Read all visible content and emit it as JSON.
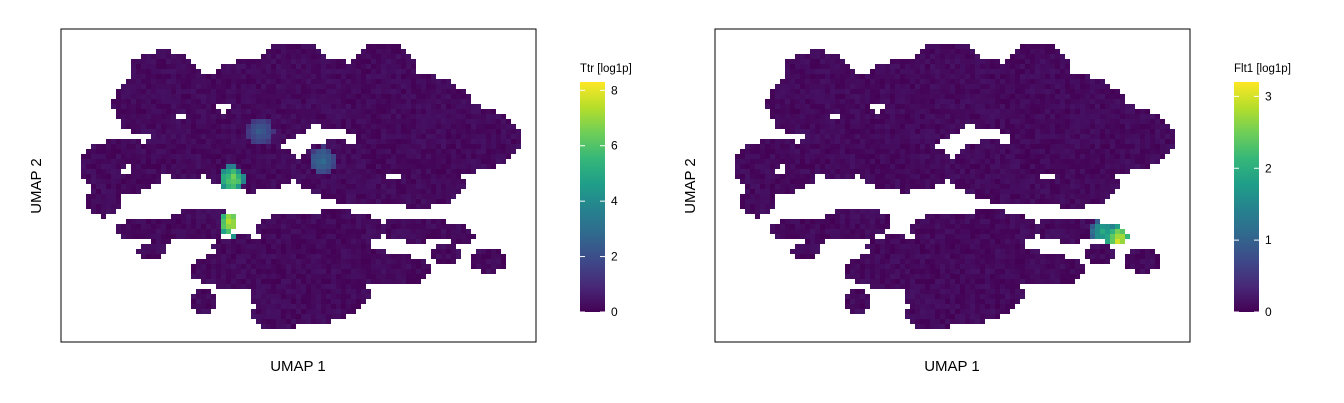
{
  "colors": {
    "viridis": [
      "#440154",
      "#482878",
      "#3e4989",
      "#31688e",
      "#26828e",
      "#1f9e89",
      "#35b779",
      "#6ece58",
      "#b5de2b",
      "#fde725"
    ],
    "background_cells": "#440154",
    "frame": "#000000"
  },
  "chart_data": [
    {
      "type": "heatmap",
      "xlabel": "UMAP 1",
      "ylabel": "UMAP 2",
      "legend_title": "Ttr [log1p]",
      "legend_placement": "right",
      "color_range": [
        0,
        8.3
      ],
      "color_ticks": [
        0,
        2,
        4,
        6,
        8
      ],
      "color_tick_labels": [
        "0",
        "2",
        "4",
        "6",
        "8"
      ],
      "hotspots": [
        {
          "x": 0.36,
          "y": 0.62,
          "value": 8.2
        },
        {
          "x": 0.36,
          "y": 0.48,
          "value": 6.8
        },
        {
          "x": 0.55,
          "y": 0.42,
          "value": 3.0
        },
        {
          "x": 0.42,
          "y": 0.33,
          "value": 2.5
        }
      ]
    },
    {
      "type": "heatmap",
      "xlabel": "UMAP 1",
      "ylabel": "UMAP 2",
      "legend_title": "Flt1 [log1p]",
      "legend_placement": "right",
      "color_range": [
        0,
        3.2
      ],
      "color_ticks": [
        0,
        1,
        2,
        3
      ],
      "color_tick_labels": [
        "0",
        "1",
        "2",
        "3"
      ],
      "hotspots": [
        {
          "x": 0.85,
          "y": 0.67,
          "value": 3.1
        },
        {
          "x": 0.82,
          "y": 0.65,
          "value": 2.0
        }
      ]
    }
  ]
}
